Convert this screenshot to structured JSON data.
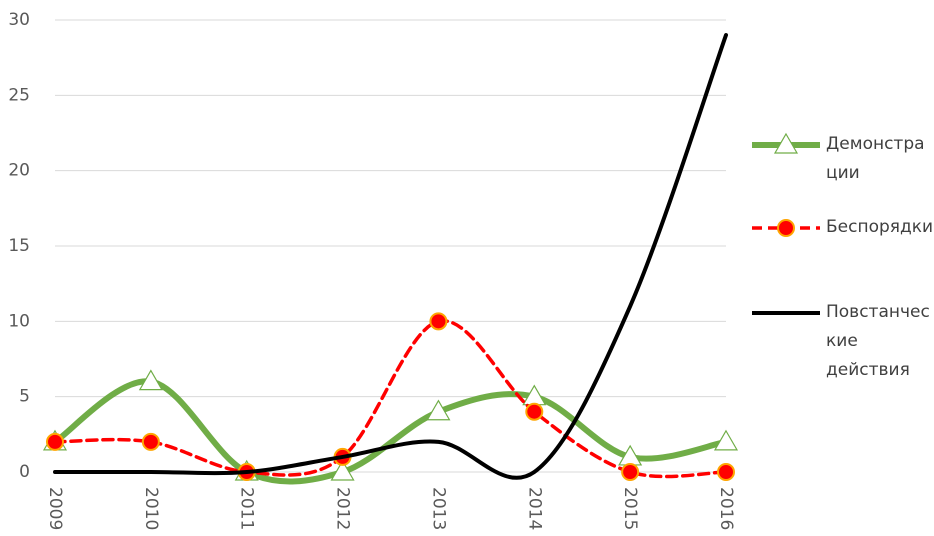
{
  "chart_data": {
    "type": "line",
    "categories": [
      "2009",
      "2010",
      "2011",
      "2012",
      "2013",
      "2014",
      "2015",
      "2016"
    ],
    "series": [
      {
        "name": "Демонстрации",
        "color": "#70ad47",
        "marker": "triangle",
        "dashed": false,
        "values": [
          2,
          6,
          0,
          0,
          4,
          5,
          1,
          2
        ]
      },
      {
        "name": "Беспорядки",
        "color": "#ff0000",
        "marker": "circle",
        "dashed": true,
        "values": [
          2,
          2,
          0,
          1,
          10,
          4,
          0,
          0
        ]
      },
      {
        "name": "Повстанческие действия",
        "color": "#000000",
        "marker": "none",
        "dashed": false,
        "values": [
          0,
          0,
          0,
          1,
          2,
          0,
          11,
          29
        ]
      }
    ],
    "ylim": [
      0,
      30
    ],
    "yticks": [
      0,
      5,
      10,
      15,
      20,
      25,
      30
    ],
    "grid": true,
    "smooth": true,
    "legend": "right"
  }
}
